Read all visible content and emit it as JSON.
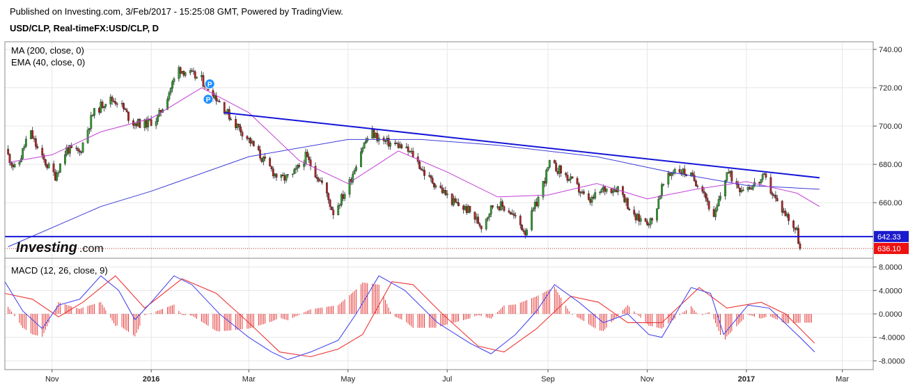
{
  "header": {
    "published": "Published on Investing.com, 3/Feb/2017 - 15:25:08 GMT, Powered by TradingView.",
    "symbol": "USD/CLP, Real-timeFX:USD/CLP, D"
  },
  "colors": {
    "up": "#2e9e2e",
    "down": "#b22222",
    "ma200": "#3b3bd9",
    "ema40": "#c23fd6",
    "trendline": "#1515d8",
    "macd": "#4a4aee",
    "signal": "#ee3333",
    "hist": "#e02020",
    "price_tag": "#ee1111",
    "support_tag": "#1a1acc",
    "marker": "#1e90ff"
  },
  "logo": {
    "text_bold": "Investing",
    "text_light": ".com"
  },
  "chart_data": [
    {
      "type": "candlestick",
      "title": "USD/CLP, Real-timeFX:USD/CLP, D",
      "indicators": [
        "MA (200, close, 0)",
        "EMA (40, close, 0)"
      ],
      "ylim": [
        631,
        744
      ],
      "yticks": [
        660,
        680,
        700,
        720,
        740
      ],
      "ytick_labels": [
        "660.00",
        "680.00",
        "700.00",
        "720.00",
        "740.00"
      ],
      "xlim": [
        "2015-10-03",
        "2017-03-20"
      ],
      "xticks": [
        {
          "date": "2015-11-01",
          "label": "Nov"
        },
        {
          "date": "2016-01-01",
          "label": "2016"
        },
        {
          "date": "2016-03-01",
          "label": "Mar"
        },
        {
          "date": "2016-05-01",
          "label": "May"
        },
        {
          "date": "2016-07-01",
          "label": "Jul"
        },
        {
          "date": "2016-09-01",
          "label": "Sep"
        },
        {
          "date": "2016-11-01",
          "label": "Nov"
        },
        {
          "date": "2017-01-01",
          "label": "2017"
        },
        {
          "date": "2017-03-01",
          "label": "Mar"
        }
      ],
      "close_path": [
        [
          "2015-10-03",
          688
        ],
        [
          "2015-10-10",
          676
        ],
        [
          "2015-10-18",
          698
        ],
        [
          "2015-10-25",
          684
        ],
        [
          "2015-11-03",
          674
        ],
        [
          "2015-11-10",
          688
        ],
        [
          "2015-11-18",
          686
        ],
        [
          "2015-11-26",
          706
        ],
        [
          "2015-12-05",
          714
        ],
        [
          "2015-12-12",
          713
        ],
        [
          "2015-12-20",
          702
        ],
        [
          "2015-12-28",
          701
        ],
        [
          "2016-01-05",
          704
        ],
        [
          "2016-01-12",
          718
        ],
        [
          "2016-01-18",
          730
        ],
        [
          "2016-01-25",
          727
        ],
        [
          "2016-02-01",
          724
        ],
        [
          "2016-02-10",
          715
        ],
        [
          "2016-02-20",
          703
        ],
        [
          "2016-03-01",
          693
        ],
        [
          "2016-03-10",
          682
        ],
        [
          "2016-03-20",
          672
        ],
        [
          "2016-03-28",
          674
        ],
        [
          "2016-04-05",
          684
        ],
        [
          "2016-04-15",
          670
        ],
        [
          "2016-04-22",
          655
        ],
        [
          "2016-05-01",
          668
        ],
        [
          "2016-05-08",
          686
        ],
        [
          "2016-05-15",
          697
        ],
        [
          "2016-05-22",
          692
        ],
        [
          "2016-06-01",
          690
        ],
        [
          "2016-06-10",
          685
        ],
        [
          "2016-06-18",
          674
        ],
        [
          "2016-06-26",
          668
        ],
        [
          "2016-07-05",
          660
        ],
        [
          "2016-07-14",
          656
        ],
        [
          "2016-07-22",
          648
        ],
        [
          "2016-07-30",
          660
        ],
        [
          "2016-08-08",
          656
        ],
        [
          "2016-08-18",
          645
        ],
        [
          "2016-08-25",
          660
        ],
        [
          "2016-09-02",
          680
        ],
        [
          "2016-09-08",
          677
        ],
        [
          "2016-09-18",
          669
        ],
        [
          "2016-09-26",
          660
        ],
        [
          "2016-10-05",
          667
        ],
        [
          "2016-10-15",
          668
        ],
        [
          "2016-10-24",
          652
        ],
        [
          "2016-11-04",
          650
        ],
        [
          "2016-11-10",
          668
        ],
        [
          "2016-11-18",
          678
        ],
        [
          "2016-11-26",
          675
        ],
        [
          "2016-12-05",
          668
        ],
        [
          "2016-12-12",
          651
        ],
        [
          "2016-12-20",
          676
        ],
        [
          "2016-12-28",
          668
        ],
        [
          "2017-01-05",
          669
        ],
        [
          "2017-01-12",
          673
        ],
        [
          "2017-01-20",
          660
        ],
        [
          "2017-01-27",
          652
        ],
        [
          "2017-02-01",
          645
        ],
        [
          "2017-02-03",
          636.1
        ]
      ],
      "ma200": [
        [
          "2015-10-05",
          637
        ],
        [
          "2015-12-01",
          658
        ],
        [
          "2016-01-01",
          666
        ],
        [
          "2016-03-01",
          684
        ],
        [
          "2016-05-01",
          693
        ],
        [
          "2016-06-15",
          693
        ],
        [
          "2016-08-01",
          690
        ],
        [
          "2016-10-01",
          684
        ],
        [
          "2016-11-15",
          676
        ],
        [
          "2017-01-01",
          669
        ],
        [
          "2017-02-15",
          667
        ]
      ],
      "ema40": [
        [
          "2015-10-05",
          681
        ],
        [
          "2015-11-01",
          685
        ],
        [
          "2015-12-01",
          697
        ],
        [
          "2016-01-01",
          704
        ],
        [
          "2016-02-01",
          720
        ],
        [
          "2016-03-01",
          707
        ],
        [
          "2016-04-01",
          682
        ],
        [
          "2016-05-01",
          670
        ],
        [
          "2016-06-01",
          687
        ],
        [
          "2016-07-01",
          676
        ],
        [
          "2016-08-01",
          663
        ],
        [
          "2016-09-01",
          664
        ],
        [
          "2016-10-01",
          670
        ],
        [
          "2016-11-01",
          662
        ],
        [
          "2016-12-01",
          667
        ],
        [
          "2017-01-01",
          671
        ],
        [
          "2017-02-01",
          665
        ],
        [
          "2017-02-15",
          658
        ]
      ],
      "trendline": [
        [
          "2016-02-15",
          707
        ],
        [
          "2017-02-15",
          673
        ]
      ],
      "support": 642.33,
      "support_label": "642.33",
      "last_price": 636.1,
      "last_label": "636.10",
      "markers": [
        {
          "date": "2016-02-06",
          "price": 722,
          "label": "P"
        },
        {
          "date": "2016-02-05",
          "price": 714,
          "label": "P"
        }
      ]
    },
    {
      "type": "line",
      "title": "MACD (12, 26, close, 9)",
      "ylim": [
        -9.5,
        9.5
      ],
      "yticks": [
        -8,
        -4,
        0,
        4,
        8
      ],
      "ytick_labels": [
        "-8.0000",
        "-4.0000",
        "0.0000",
        "4.0000",
        "8.0000"
      ],
      "series": [
        {
          "name": "MACD",
          "points": [
            [
              "2015-10-03",
              5.5
            ],
            [
              "2015-10-14",
              0.5
            ],
            [
              "2015-10-26",
              -2.5
            ],
            [
              "2015-11-05",
              1.5
            ],
            [
              "2015-11-18",
              2.5
            ],
            [
              "2015-12-01",
              6.5
            ],
            [
              "2015-12-12",
              4.0
            ],
            [
              "2015-12-22",
              -1.0
            ],
            [
              "2016-01-01",
              2.0
            ],
            [
              "2016-01-15",
              6.5
            ],
            [
              "2016-01-26",
              5.0
            ],
            [
              "2016-02-12",
              0.0
            ],
            [
              "2016-03-01",
              -4.0
            ],
            [
              "2016-03-15",
              -6.5
            ],
            [
              "2016-03-25",
              -7.8
            ],
            [
              "2016-04-08",
              -6.5
            ],
            [
              "2016-04-25",
              -4.5
            ],
            [
              "2016-05-06",
              0.0
            ],
            [
              "2016-05-20",
              6.5
            ],
            [
              "2016-06-05",
              4.0
            ],
            [
              "2016-06-25",
              -1.5
            ],
            [
              "2016-07-15",
              -5.0
            ],
            [
              "2016-07-28",
              -6.8
            ],
            [
              "2016-08-12",
              -3.5
            ],
            [
              "2016-08-25",
              0.5
            ],
            [
              "2016-09-05",
              5.0
            ],
            [
              "2016-09-20",
              2.0
            ],
            [
              "2016-10-05",
              -1.5
            ],
            [
              "2016-10-20",
              0.0
            ],
            [
              "2016-11-02",
              -3.5
            ],
            [
              "2016-11-10",
              -4.0
            ],
            [
              "2016-11-28",
              4.5
            ],
            [
              "2016-12-10",
              3.5
            ],
            [
              "2016-12-18",
              -3.5
            ],
            [
              "2017-01-02",
              1.5
            ],
            [
              "2017-01-15",
              1.0
            ],
            [
              "2017-02-03",
              -4.0
            ],
            [
              "2017-02-12",
              -6.5
            ]
          ]
        },
        {
          "name": "Signal",
          "points": [
            [
              "2015-10-03",
              3.5
            ],
            [
              "2015-10-20",
              2.5
            ],
            [
              "2015-11-05",
              -0.5
            ],
            [
              "2015-11-20",
              2.0
            ],
            [
              "2015-12-10",
              6.5
            ],
            [
              "2015-12-28",
              1.0
            ],
            [
              "2016-01-20",
              6.0
            ],
            [
              "2016-02-10",
              3.5
            ],
            [
              "2016-03-01",
              -1.5
            ],
            [
              "2016-03-20",
              -6.5
            ],
            [
              "2016-04-08",
              -7.3
            ],
            [
              "2016-04-25",
              -6.0
            ],
            [
              "2016-05-10",
              -3.5
            ],
            [
              "2016-05-28",
              5.5
            ],
            [
              "2016-06-10",
              5.0
            ],
            [
              "2016-06-28",
              0.0
            ],
            [
              "2016-07-20",
              -5.5
            ],
            [
              "2016-08-05",
              -6.5
            ],
            [
              "2016-08-25",
              -2.5
            ],
            [
              "2016-09-15",
              3.0
            ],
            [
              "2016-10-02",
              2.0
            ],
            [
              "2016-10-20",
              -1.5
            ],
            [
              "2016-11-10",
              -1.5
            ],
            [
              "2016-12-03",
              4.5
            ],
            [
              "2016-12-20",
              1.0
            ],
            [
              "2017-01-10",
              2.0
            ],
            [
              "2017-01-25",
              0.0
            ],
            [
              "2017-02-12",
              -5.0
            ]
          ]
        }
      ]
    }
  ]
}
